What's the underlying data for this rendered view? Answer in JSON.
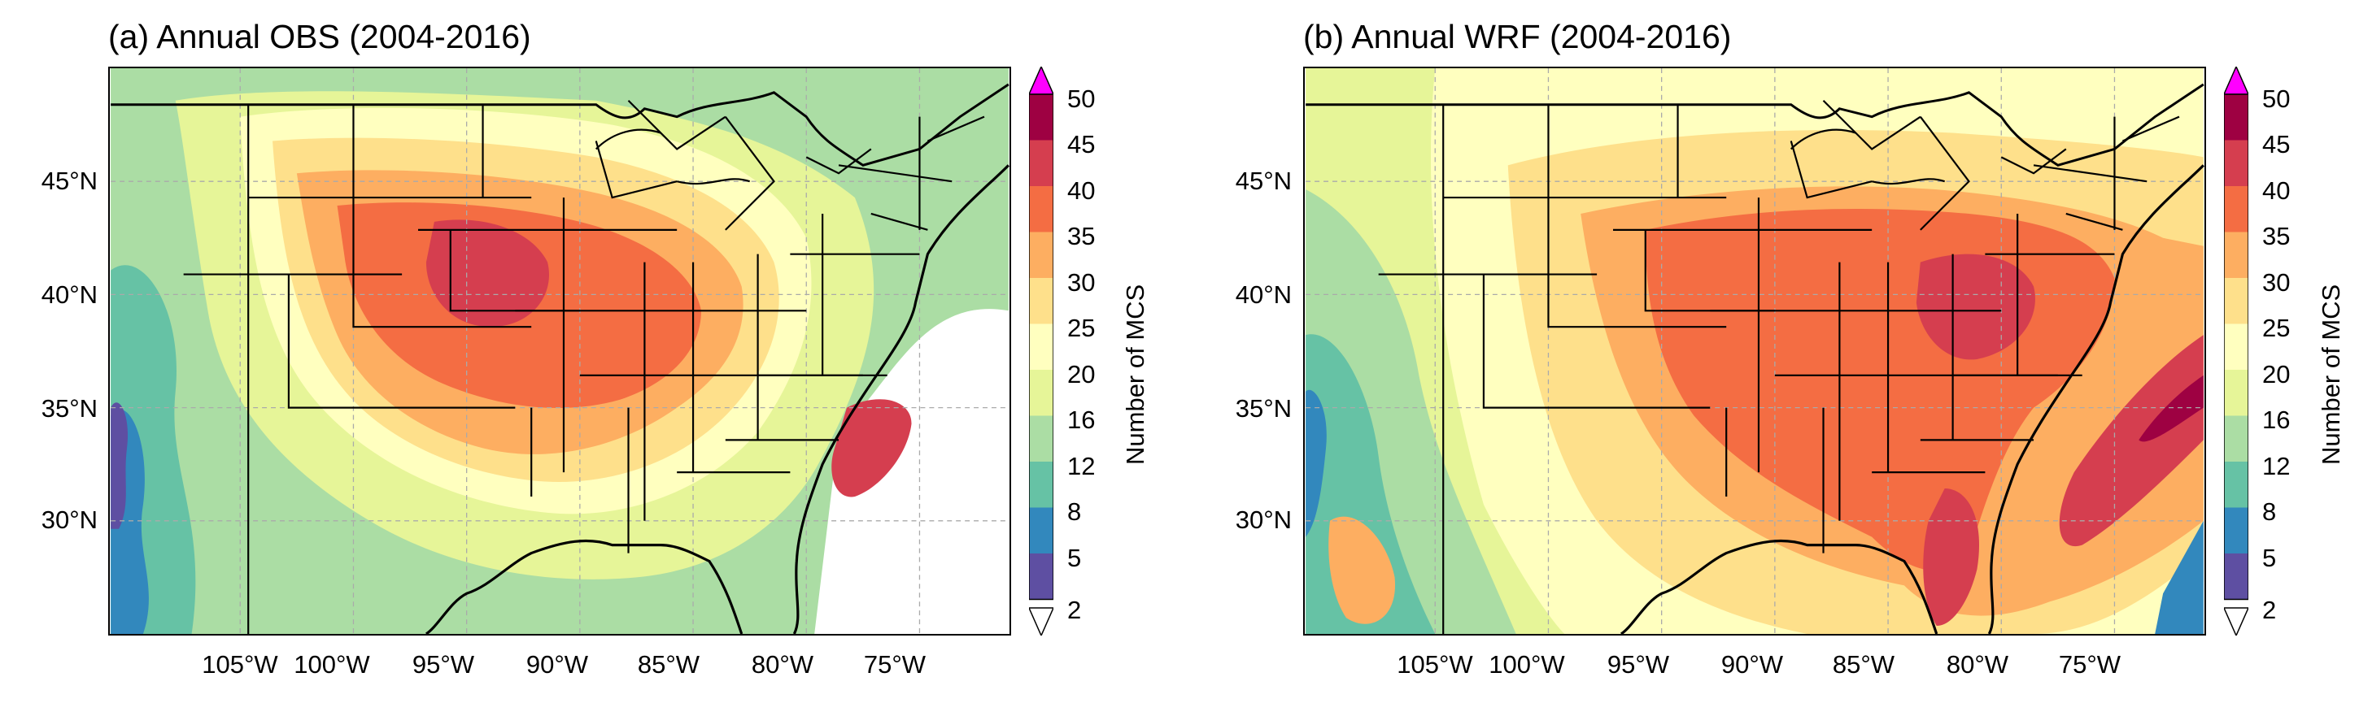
{
  "panels": [
    {
      "title": "(a) Annual OBS (2004-2016)",
      "dataset": "OBS"
    },
    {
      "title": "(b) Annual WRF (2004-2016)",
      "dataset": "WRF"
    }
  ],
  "latitude_labels": [
    "45°N",
    "40°N",
    "35°N",
    "30°N"
  ],
  "longitude_labels": [
    "105°W",
    "100°W",
    "95°W",
    "90°W",
    "85°W",
    "80°W",
    "75°W"
  ],
  "colorbar": {
    "title": "Number of MCS",
    "ticks": [
      "50",
      "45",
      "40",
      "35",
      "30",
      "25",
      "20",
      "16",
      "12",
      "8",
      "5",
      "2"
    ],
    "levels": [
      2,
      5,
      8,
      12,
      16,
      20,
      25,
      30,
      35,
      40,
      45,
      50
    ],
    "colors": [
      "#5e4fa2",
      "#3288bd",
      "#66c2a5",
      "#abdda4",
      "#e6f598",
      "#ffffbf",
      "#fee08b",
      "#fdae61",
      "#f46d43",
      "#d53e4f",
      "#9e0142"
    ],
    "over_color": "#ff00ff",
    "under_color": "#ffffff"
  },
  "colors": {
    "grid": "#aaaaaa",
    "borders": "#000000"
  }
}
